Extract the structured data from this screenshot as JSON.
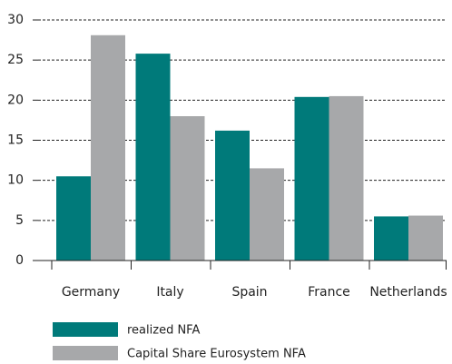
{
  "chart_data": {
    "type": "bar",
    "categories": [
      "Germany",
      "Italy",
      "Spain",
      "France",
      "Netherlands"
    ],
    "series": [
      {
        "name": "realized NFA",
        "color": "#007a7a",
        "values": [
          10.5,
          25.8,
          16.2,
          20.4,
          5.5
        ]
      },
      {
        "name": "Capital Share Eurosystem NFA",
        "color": "#a7a8aa",
        "values": [
          28.1,
          18.0,
          11.5,
          20.5,
          5.6
        ]
      }
    ],
    "ylim": [
      0,
      30
    ],
    "yticks": [
      0,
      5,
      10,
      15,
      20,
      25,
      30
    ],
    "grid": true,
    "legend": "bottom"
  }
}
